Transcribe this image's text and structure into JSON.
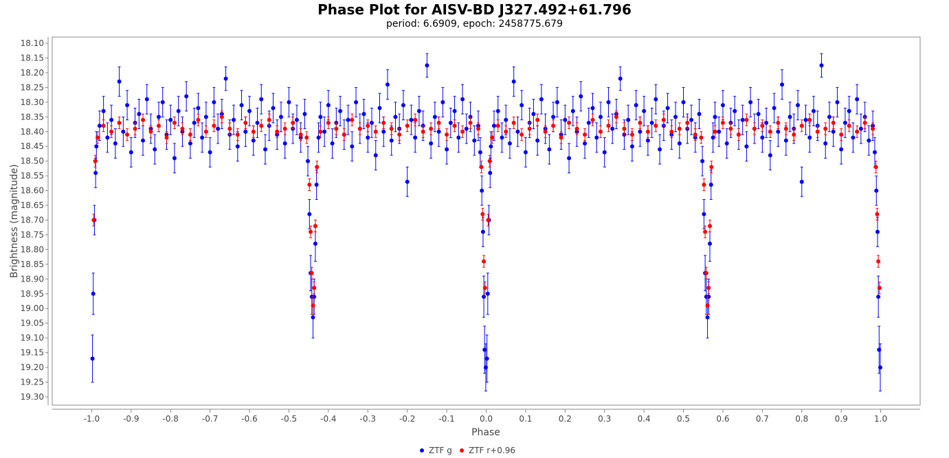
{
  "chart_data": {
    "type": "scatter",
    "title": "Phase Plot for AISV-BD J327.492+61.796",
    "subtitle": "period: 6.6909, epoch: 2458775.679",
    "xlabel": "Phase",
    "ylabel": "Brightness (magnitude)",
    "xlim": [
      -1.1,
      1.1
    ],
    "ylim": [
      19.328,
      18.079
    ],
    "y_inverted": true,
    "xticks": [
      "-1.0",
      "-0.9",
      "-0.8",
      "-0.7",
      "-0.6",
      "-0.5",
      "-0.4",
      "-0.3",
      "-0.2",
      "-0.1",
      "0.0",
      "0.1",
      "0.2",
      "0.3",
      "0.4",
      "0.5",
      "0.6",
      "0.7",
      "0.8",
      "0.9",
      "1.0"
    ],
    "yticks": [
      "18.10",
      "18.15",
      "18.20",
      "18.25",
      "18.30",
      "18.35",
      "18.40",
      "18.45",
      "18.50",
      "18.55",
      "18.60",
      "18.65",
      "18.70",
      "18.75",
      "18.80",
      "18.85",
      "18.90",
      "18.95",
      "19.00",
      "19.05",
      "19.10",
      "19.15",
      "19.20",
      "19.25",
      "19.30"
    ],
    "grid": false,
    "legend_position": "bottom",
    "phase_repeat": [
      0,
      -1
    ],
    "series": [
      {
        "name": "ZTF g",
        "color": "#0000ff",
        "points": [
          [
            0.012,
            18.45,
            0.05
          ],
          [
            0.02,
            18.38,
            0.05
          ],
          [
            0.03,
            18.33,
            0.05
          ],
          [
            0.04,
            18.42,
            0.05
          ],
          [
            0.05,
            18.36,
            0.05
          ],
          [
            0.06,
            18.44,
            0.05
          ],
          [
            0.07,
            18.23,
            0.05
          ],
          [
            0.08,
            18.4,
            0.05
          ],
          [
            0.09,
            18.31,
            0.05
          ],
          [
            0.1,
            18.47,
            0.05
          ],
          [
            0.11,
            18.37,
            0.05
          ],
          [
            0.12,
            18.34,
            0.05
          ],
          [
            0.13,
            18.43,
            0.05
          ],
          [
            0.14,
            18.29,
            0.05
          ],
          [
            0.15,
            18.39,
            0.05
          ],
          [
            0.16,
            18.46,
            0.05
          ],
          [
            0.17,
            18.35,
            0.05
          ],
          [
            0.18,
            18.3,
            0.05
          ],
          [
            0.19,
            18.41,
            0.05
          ],
          [
            0.2,
            18.36,
            0.05
          ],
          [
            0.21,
            18.49,
            0.05
          ],
          [
            0.22,
            18.33,
            0.05
          ],
          [
            0.23,
            18.4,
            0.05
          ],
          [
            0.24,
            18.28,
            0.05
          ],
          [
            0.25,
            18.44,
            0.05
          ],
          [
            0.26,
            18.37,
            0.05
          ],
          [
            0.27,
            18.32,
            0.05
          ],
          [
            0.28,
            18.42,
            0.05
          ],
          [
            0.29,
            18.35,
            0.05
          ],
          [
            0.3,
            18.47,
            0.05
          ],
          [
            0.31,
            18.3,
            0.05
          ],
          [
            0.32,
            18.39,
            0.05
          ],
          [
            0.33,
            18.34,
            0.05
          ],
          [
            0.34,
            18.22,
            0.04
          ],
          [
            0.35,
            18.41,
            0.05
          ],
          [
            0.36,
            18.36,
            0.05
          ],
          [
            0.37,
            18.45,
            0.05
          ],
          [
            0.38,
            18.31,
            0.05
          ],
          [
            0.39,
            18.4,
            0.05
          ],
          [
            0.4,
            18.33,
            0.05
          ],
          [
            0.41,
            18.43,
            0.05
          ],
          [
            0.42,
            18.37,
            0.05
          ],
          [
            0.43,
            18.29,
            0.05
          ],
          [
            0.44,
            18.46,
            0.05
          ],
          [
            0.45,
            18.38,
            0.05
          ],
          [
            0.46,
            18.32,
            0.05
          ],
          [
            0.47,
            18.41,
            0.05
          ],
          [
            0.48,
            18.35,
            0.05
          ],
          [
            0.49,
            18.44,
            0.05
          ],
          [
            0.5,
            18.3,
            0.05
          ],
          [
            0.51,
            18.39,
            0.05
          ],
          [
            0.52,
            18.36,
            0.05
          ],
          [
            0.53,
            18.42,
            0.05
          ],
          [
            0.54,
            18.34,
            0.05
          ],
          [
            0.548,
            18.5,
            0.05
          ],
          [
            0.552,
            18.68,
            0.05
          ],
          [
            0.555,
            18.88,
            0.06
          ],
          [
            0.558,
            18.96,
            0.06
          ],
          [
            0.561,
            19.03,
            0.07
          ],
          [
            0.564,
            18.96,
            0.06
          ],
          [
            0.567,
            18.78,
            0.06
          ],
          [
            0.57,
            18.58,
            0.05
          ],
          [
            0.575,
            18.42,
            0.05
          ],
          [
            0.58,
            18.35,
            0.05
          ],
          [
            0.59,
            18.4,
            0.05
          ],
          [
            0.6,
            18.31,
            0.05
          ],
          [
            0.61,
            18.44,
            0.05
          ],
          [
            0.62,
            18.37,
            0.05
          ],
          [
            0.63,
            18.33,
            0.05
          ],
          [
            0.64,
            18.41,
            0.05
          ],
          [
            0.65,
            18.36,
            0.05
          ],
          [
            0.66,
            18.45,
            0.05
          ],
          [
            0.67,
            18.3,
            0.05
          ],
          [
            0.68,
            18.39,
            0.05
          ],
          [
            0.69,
            18.34,
            0.05
          ],
          [
            0.7,
            18.42,
            0.05
          ],
          [
            0.71,
            18.37,
            0.05
          ],
          [
            0.72,
            18.48,
            0.05
          ],
          [
            0.73,
            18.32,
            0.05
          ],
          [
            0.74,
            18.4,
            0.05
          ],
          [
            0.75,
            18.24,
            0.05
          ],
          [
            0.76,
            18.43,
            0.05
          ],
          [
            0.77,
            18.35,
            0.05
          ],
          [
            0.78,
            18.39,
            0.05
          ],
          [
            0.79,
            18.31,
            0.05
          ],
          [
            0.8,
            18.57,
            0.05
          ],
          [
            0.81,
            18.36,
            0.05
          ],
          [
            0.82,
            18.42,
            0.05
          ],
          [
            0.83,
            18.33,
            0.05
          ],
          [
            0.84,
            18.38,
            0.05
          ],
          [
            0.85,
            18.175,
            0.04
          ],
          [
            0.86,
            18.44,
            0.05
          ],
          [
            0.87,
            18.35,
            0.05
          ],
          [
            0.88,
            18.4,
            0.05
          ],
          [
            0.89,
            18.3,
            0.05
          ],
          [
            0.9,
            18.46,
            0.05
          ],
          [
            0.91,
            18.37,
            0.05
          ],
          [
            0.92,
            18.33,
            0.05
          ],
          [
            0.93,
            18.42,
            0.05
          ],
          [
            0.94,
            18.29,
            0.05
          ],
          [
            0.95,
            18.39,
            0.05
          ],
          [
            0.96,
            18.35,
            0.05
          ],
          [
            0.97,
            18.43,
            0.05
          ],
          [
            0.98,
            18.38,
            0.05
          ],
          [
            0.985,
            18.47,
            0.05
          ],
          [
            0.989,
            18.6,
            0.05
          ],
          [
            0.992,
            18.74,
            0.05
          ],
          [
            0.994,
            18.96,
            0.07
          ],
          [
            0.996,
            19.14,
            0.08
          ],
          [
            0.999,
            19.2,
            0.08
          ],
          [
            0.002,
            19.17,
            0.08
          ],
          [
            0.004,
            18.95,
            0.07
          ],
          [
            0.007,
            18.7,
            0.05
          ],
          [
            0.01,
            18.54,
            0.05
          ]
        ]
      },
      {
        "name": "ZTF r+0.96",
        "color": "#ff0000",
        "points": [
          [
            0.015,
            18.42,
            0.02
          ],
          [
            0.03,
            18.38,
            0.02
          ],
          [
            0.05,
            18.4,
            0.02
          ],
          [
            0.07,
            18.37,
            0.02
          ],
          [
            0.09,
            18.41,
            0.02
          ],
          [
            0.11,
            18.39,
            0.02
          ],
          [
            0.13,
            18.36,
            0.02
          ],
          [
            0.15,
            18.4,
            0.02
          ],
          [
            0.17,
            18.38,
            0.02
          ],
          [
            0.19,
            18.42,
            0.02
          ],
          [
            0.21,
            18.37,
            0.02
          ],
          [
            0.23,
            18.39,
            0.02
          ],
          [
            0.25,
            18.41,
            0.02
          ],
          [
            0.27,
            18.36,
            0.02
          ],
          [
            0.29,
            18.4,
            0.02
          ],
          [
            0.31,
            18.38,
            0.02
          ],
          [
            0.33,
            18.35,
            0.02
          ],
          [
            0.35,
            18.39,
            0.02
          ],
          [
            0.37,
            18.41,
            0.02
          ],
          [
            0.39,
            18.37,
            0.02
          ],
          [
            0.41,
            18.4,
            0.02
          ],
          [
            0.43,
            18.38,
            0.02
          ],
          [
            0.45,
            18.36,
            0.02
          ],
          [
            0.47,
            18.4,
            0.02
          ],
          [
            0.49,
            18.39,
            0.02
          ],
          [
            0.51,
            18.37,
            0.02
          ],
          [
            0.53,
            18.41,
            0.02
          ],
          [
            0.545,
            18.42,
            0.02
          ],
          [
            0.552,
            18.58,
            0.02
          ],
          [
            0.555,
            18.74,
            0.02
          ],
          [
            0.558,
            18.88,
            0.02
          ],
          [
            0.561,
            18.99,
            0.03
          ],
          [
            0.564,
            18.93,
            0.02
          ],
          [
            0.567,
            18.72,
            0.02
          ],
          [
            0.571,
            18.52,
            0.02
          ],
          [
            0.58,
            18.4,
            0.02
          ],
          [
            0.6,
            18.37,
            0.02
          ],
          [
            0.62,
            18.39,
            0.02
          ],
          [
            0.64,
            18.41,
            0.02
          ],
          [
            0.66,
            18.36,
            0.02
          ],
          [
            0.68,
            18.39,
            0.02
          ],
          [
            0.7,
            18.38,
            0.02
          ],
          [
            0.72,
            18.4,
            0.02
          ],
          [
            0.74,
            18.37,
            0.02
          ],
          [
            0.76,
            18.39,
            0.02
          ],
          [
            0.78,
            18.41,
            0.02
          ],
          [
            0.8,
            18.38,
            0.02
          ],
          [
            0.82,
            18.36,
            0.02
          ],
          [
            0.84,
            18.4,
            0.02
          ],
          [
            0.86,
            18.39,
            0.02
          ],
          [
            0.88,
            18.37,
            0.02
          ],
          [
            0.9,
            18.41,
            0.02
          ],
          [
            0.92,
            18.38,
            0.02
          ],
          [
            0.94,
            18.4,
            0.02
          ],
          [
            0.96,
            18.37,
            0.02
          ],
          [
            0.98,
            18.39,
            0.02
          ],
          [
            0.988,
            18.52,
            0.02
          ],
          [
            0.991,
            18.68,
            0.02
          ],
          [
            0.994,
            18.84,
            0.02
          ],
          [
            0.997,
            18.93,
            0.02
          ],
          [
            0.005,
            18.7,
            0.02
          ],
          [
            0.009,
            18.5,
            0.02
          ]
        ]
      }
    ]
  }
}
